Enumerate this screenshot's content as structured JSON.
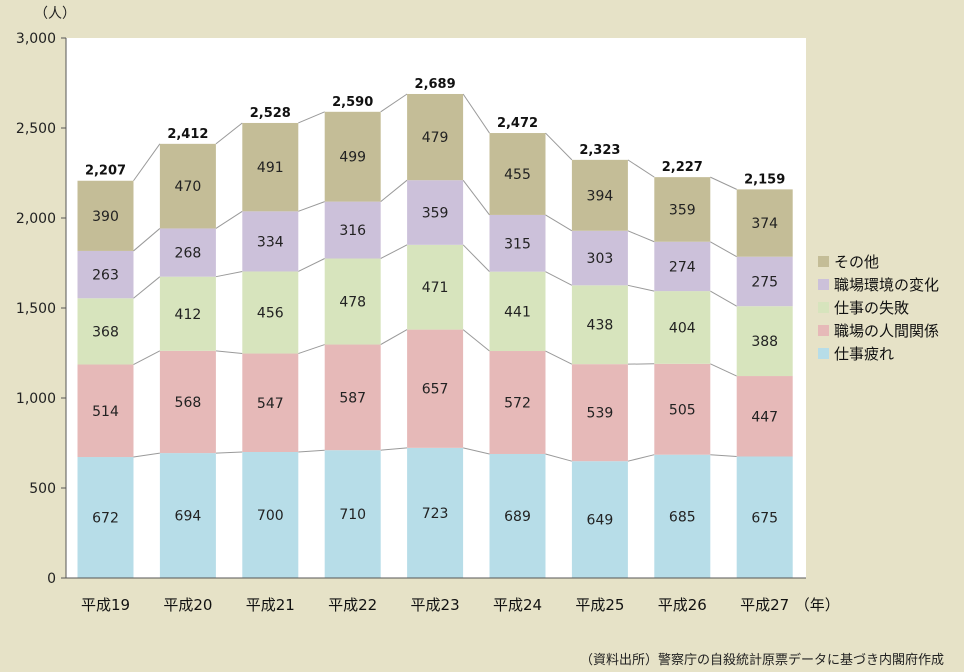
{
  "chart_data": {
    "type": "bar",
    "stacked": true,
    "y_unit": "（人）",
    "x_unit": "（年）",
    "ylim": [
      0,
      3000
    ],
    "yticks": [
      "0",
      "500",
      "1,000",
      "1,500",
      "2,000",
      "2,500",
      "3,000"
    ],
    "ytick_values": [
      0,
      500,
      1000,
      1500,
      2000,
      2500,
      3000
    ],
    "categories": [
      "平成19",
      "平成20",
      "平成21",
      "平成22",
      "平成23",
      "平成24",
      "平成25",
      "平成26",
      "平成27"
    ],
    "series": [
      {
        "name": "仕事疲れ",
        "color": "#b7dde8",
        "values": [
          672,
          694,
          700,
          710,
          723,
          689,
          649,
          685,
          675
        ]
      },
      {
        "name": "職場の人間関係",
        "color": "#e6b9b8",
        "values": [
          514,
          568,
          547,
          587,
          657,
          572,
          539,
          505,
          447
        ]
      },
      {
        "name": "仕事の失敗",
        "color": "#d7e4bd",
        "values": [
          368,
          412,
          456,
          478,
          471,
          441,
          438,
          404,
          388
        ]
      },
      {
        "name": "職場環境の変化",
        "color": "#ccc1da",
        "values": [
          263,
          268,
          334,
          316,
          359,
          315,
          303,
          274,
          275
        ]
      },
      {
        "name": "その他",
        "color": "#c4bd97",
        "values": [
          390,
          470,
          491,
          499,
          479,
          455,
          394,
          359,
          374
        ]
      }
    ],
    "totals": [
      "2,207",
      "2,412",
      "2,528",
      "2,590",
      "2,689",
      "2,472",
      "2,323",
      "2,227",
      "2,159"
    ],
    "legend_order": [
      "その他",
      "職場環境の変化",
      "仕事の失敗",
      "職場の人間関係",
      "仕事疲れ"
    ],
    "legend_position": "right",
    "grid": false
  },
  "source_note": "（資料出所）警察庁の自殺統計原票データに基づき内閣府作成"
}
